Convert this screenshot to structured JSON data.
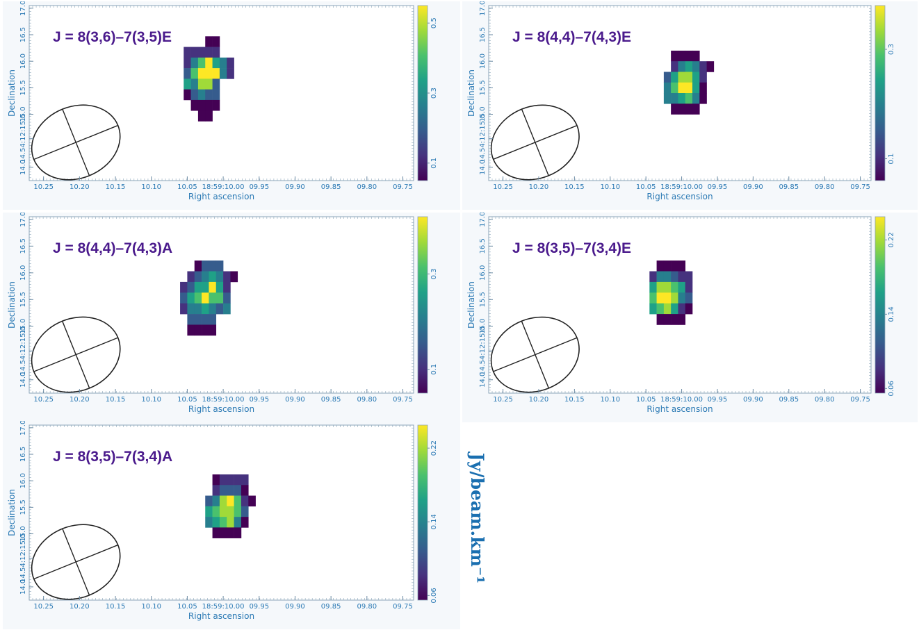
{
  "shared": {
    "xlabel": "Right ascension",
    "ylabel": "Declination",
    "x_ticks": [
      "10.25",
      "10.20",
      "10.15",
      "10.10",
      "10.05",
      "18:59:10.00",
      "09.95",
      "09.90",
      "09.85",
      "09.80",
      "09.75"
    ],
    "x_tick_values": [
      10.25,
      10.2,
      10.15,
      10.1,
      10.05,
      10.0,
      9.95,
      9.9,
      9.85,
      9.8,
      9.75
    ],
    "y_ticks": [
      "14.0",
      "14.54:12:15.0",
      "15.0",
      "15.5",
      "16.0",
      "16.5",
      "17.0"
    ],
    "y_tick_values": [
      14.0,
      14.54,
      15.0,
      15.5,
      16.0,
      16.5,
      17.0
    ],
    "colormap": [
      "#440154",
      "#46327e",
      "#365c8d",
      "#277f8e",
      "#1fa187",
      "#4ac16d",
      "#a0da39",
      "#fde725"
    ]
  },
  "colorbar_unit": "Jy/beam.km⁻¹",
  "chart_data": [
    {
      "type": "heatmap",
      "title": "J = 8(3,6)–7(3,5)E",
      "xlabel": "Right ascension",
      "ylabel": "Declination",
      "colorbar_ticks": [
        "0.1",
        "0.3",
        "0.5"
      ],
      "colorbar_range": [
        0.05,
        0.55
      ],
      "pixel_grid": {
        "col0": 10.055,
        "dx": 0.01,
        "row0": 16.47,
        "dy": 0.2,
        "cells": [
          "...xx..",
          "22222..",
          "2468542",
          "3689842",
          "54773..",
          "x3433..",
          ".1111..",
          "..11..."
        ]
      }
    },
    {
      "type": "heatmap",
      "title": "J = 8(4,4)–7(4,3)E",
      "xlabel": "Right ascension",
      "ylabel": "Declination",
      "colorbar_ticks": [
        "0.1",
        "0.3"
      ],
      "colorbar_range": [
        0.06,
        0.38
      ],
      "pixel_grid": {
        "col0": 10.025,
        "dx": 0.01,
        "row0": 16.2,
        "dy": 0.2,
        "cells": [
          ".1111..",
          ".24542x",
          "357752.",
          "46895x.",
          "44564x.",
          ".111x.."
        ]
      }
    },
    {
      "type": "heatmap",
      "title": "J = 8(4,4)–7(4,3)A",
      "xlabel": "Right ascension",
      "ylabel": "Declination",
      "colorbar_ticks": [
        "0.1",
        "0.3"
      ],
      "colorbar_range": [
        0.05,
        0.42
      ],
      "pixel_grid": {
        "col0": 10.06,
        "dx": 0.01,
        "row0": 16.23,
        "dy": 0.2,
        "cells": [
          "..x333..",
          ".234542x",
          "2355852.",
          "3568663.",
          "2445434.",
          ".3333...",
          ".1111..."
        ]
      }
    },
    {
      "type": "heatmap",
      "title": "J = 8(3,5)–7(3,4)E",
      "xlabel": "Right ascension",
      "ylabel": "Declination",
      "colorbar_ticks": [
        "0.06",
        "0.14",
        "0.22"
      ],
      "colorbar_range": [
        0.055,
        0.245
      ],
      "pixel_grid": {
        "col0": 10.045,
        "dx": 0.01,
        "row0": 16.23,
        "dy": 0.2,
        "cells": [
          ".1111.",
          "244322",
          "577652",
          "688743",
          "56752x",
          ".111x."
        ]
      }
    },
    {
      "type": "heatmap",
      "title": "J = 8(3,5)–7(3,4)A",
      "xlabel": "Right ascension",
      "ylabel": "Declination",
      "colorbar_ticks": [
        "0.06",
        "0.14",
        "0.22"
      ],
      "colorbar_range": [
        0.055,
        0.245
      ],
      "pixel_grid": {
        "col0": 10.025,
        "dx": 0.01,
        "row0": 16.12,
        "dy": 0.2,
        "cells": [
          ".12222.",
          ".23331.",
          "3478621",
          "567763.",
          "45674x.",
          ".111x.."
        ]
      }
    }
  ]
}
